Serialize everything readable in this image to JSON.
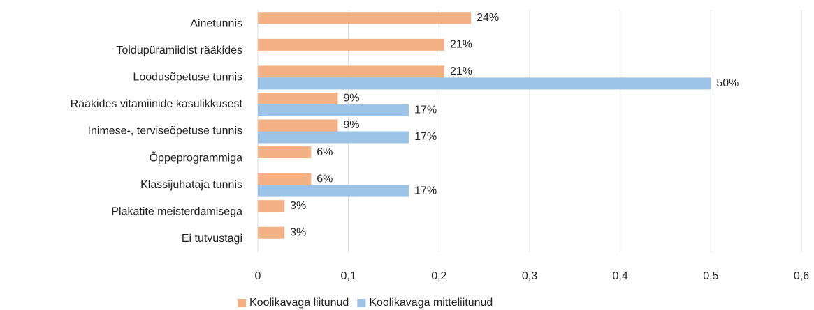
{
  "chart_data": {
    "type": "hbar",
    "categories": [
      "Ainetunnis",
      "Toidupüramiidist rääkides",
      "Loodusõpetuse tunnis",
      "Rääkides vitamiinide kasulikkusest",
      "Inimese-, terviseõpetuse tunnis",
      "Õppeprogrammiga",
      "Klassijuhataja tunnis",
      "Plakatite meisterdamisega",
      "Ei tutvustagi"
    ],
    "series": [
      {
        "name": "Koolikavaga liitunud",
        "color": "#f4b183",
        "values": [
          0.2353,
          0.2059,
          0.2059,
          0.0882,
          0.0882,
          0.0588,
          0.0588,
          0.0294,
          0.0294
        ],
        "value_labels": [
          "24%",
          "21%",
          "21%",
          "9%",
          "9%",
          "6%",
          "6%",
          "3%",
          "3%"
        ]
      },
      {
        "name": "Koolikavaga mitteliitunud",
        "color": "#9dc3e6",
        "values": [
          null,
          null,
          0.5,
          0.1667,
          0.1667,
          null,
          0.1667,
          null,
          null
        ],
        "value_labels": [
          null,
          null,
          "50%",
          "17%",
          "17%",
          null,
          "17%",
          null,
          null
        ]
      }
    ],
    "xlim": [
      0,
      0.6
    ],
    "xticks": [
      0,
      {
        "value": 0.1,
        "label": "0,1"
      },
      {
        "value": 0.2,
        "label": "0,2"
      },
      {
        "value": 0.3,
        "label": "0,3"
      },
      {
        "value": 0.4,
        "label": "0,4"
      },
      {
        "value": 0.5,
        "label": "0,5"
      },
      {
        "value": 0.6,
        "label": "0,6"
      }
    ],
    "grid": true,
    "legend": "bottom"
  }
}
